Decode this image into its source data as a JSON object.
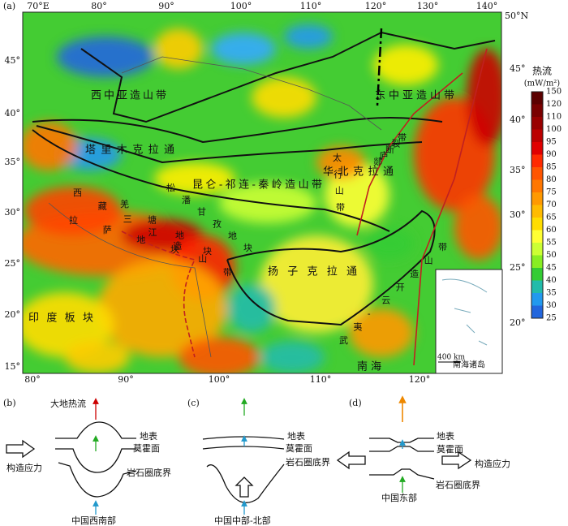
{
  "panel_a": {
    "label": "(a)",
    "top_lon": [
      "70°E",
      "80°",
      "90°",
      "100°",
      "110°",
      "120°",
      "130°",
      "140°"
    ],
    "corner_lat": "50°N",
    "bottom_lon": [
      "80°",
      "90°",
      "100°",
      "110°",
      "120°"
    ],
    "left_lat": [
      "45°",
      "40°",
      "35°",
      "30°",
      "25°",
      "20°",
      "15°"
    ],
    "right_lat": [
      "45°",
      "40°",
      "35°",
      "30°",
      "25°",
      "20°"
    ],
    "legend": {
      "title": "热流",
      "unit": "(mW/m²)",
      "ticks": [
        150,
        120,
        110,
        100,
        95,
        90,
        85,
        80,
        75,
        70,
        65,
        60,
        55,
        50,
        45,
        40,
        35,
        30,
        25
      ],
      "colors": [
        "#5c0000",
        "#7a0000",
        "#990000",
        "#bb0000",
        "#e00000",
        "#ff2a00",
        "#ff5500",
        "#ff7700",
        "#ff9900",
        "#ffbb00",
        "#ffdd00",
        "#ffff33",
        "#ccff33",
        "#88ee22",
        "#33cc33",
        "#22bbaa",
        "#2299ee",
        "#2266dd"
      ]
    },
    "regions": [
      "西中亚造山带",
      "东中亚造山带",
      "塔里木克拉通",
      "昆仑-祁连-秦岭造山带",
      "华北克拉通",
      "西藏三江造山带",
      "松潘甘孜地块",
      "羌塘地块",
      "拉萨地块",
      "太行山带",
      "郯庐断裂带",
      "扬子克拉通",
      "印度板块",
      "武夷-云开造山带",
      "南海"
    ],
    "inset": {
      "title": "南海诸岛",
      "scale": "400 km"
    }
  },
  "panel_b": {
    "label": "(b)",
    "heat_flow": "大地热流",
    "surface": "地表",
    "moho": "莫霍面",
    "stress": "构造应力",
    "lithosphere": "岩石圈底界",
    "region": "中国西南部"
  },
  "panel_c": {
    "label": "(c)",
    "surface": "地表",
    "moho": "莫霍面",
    "lithosphere": "岩石圈底界",
    "region": "中国中部-北部"
  },
  "panel_d": {
    "label": "(d)",
    "surface": "地表",
    "moho": "莫霍面",
    "stress": "构造应力",
    "lithosphere": "岩石圈底界",
    "region": "中国东部"
  }
}
